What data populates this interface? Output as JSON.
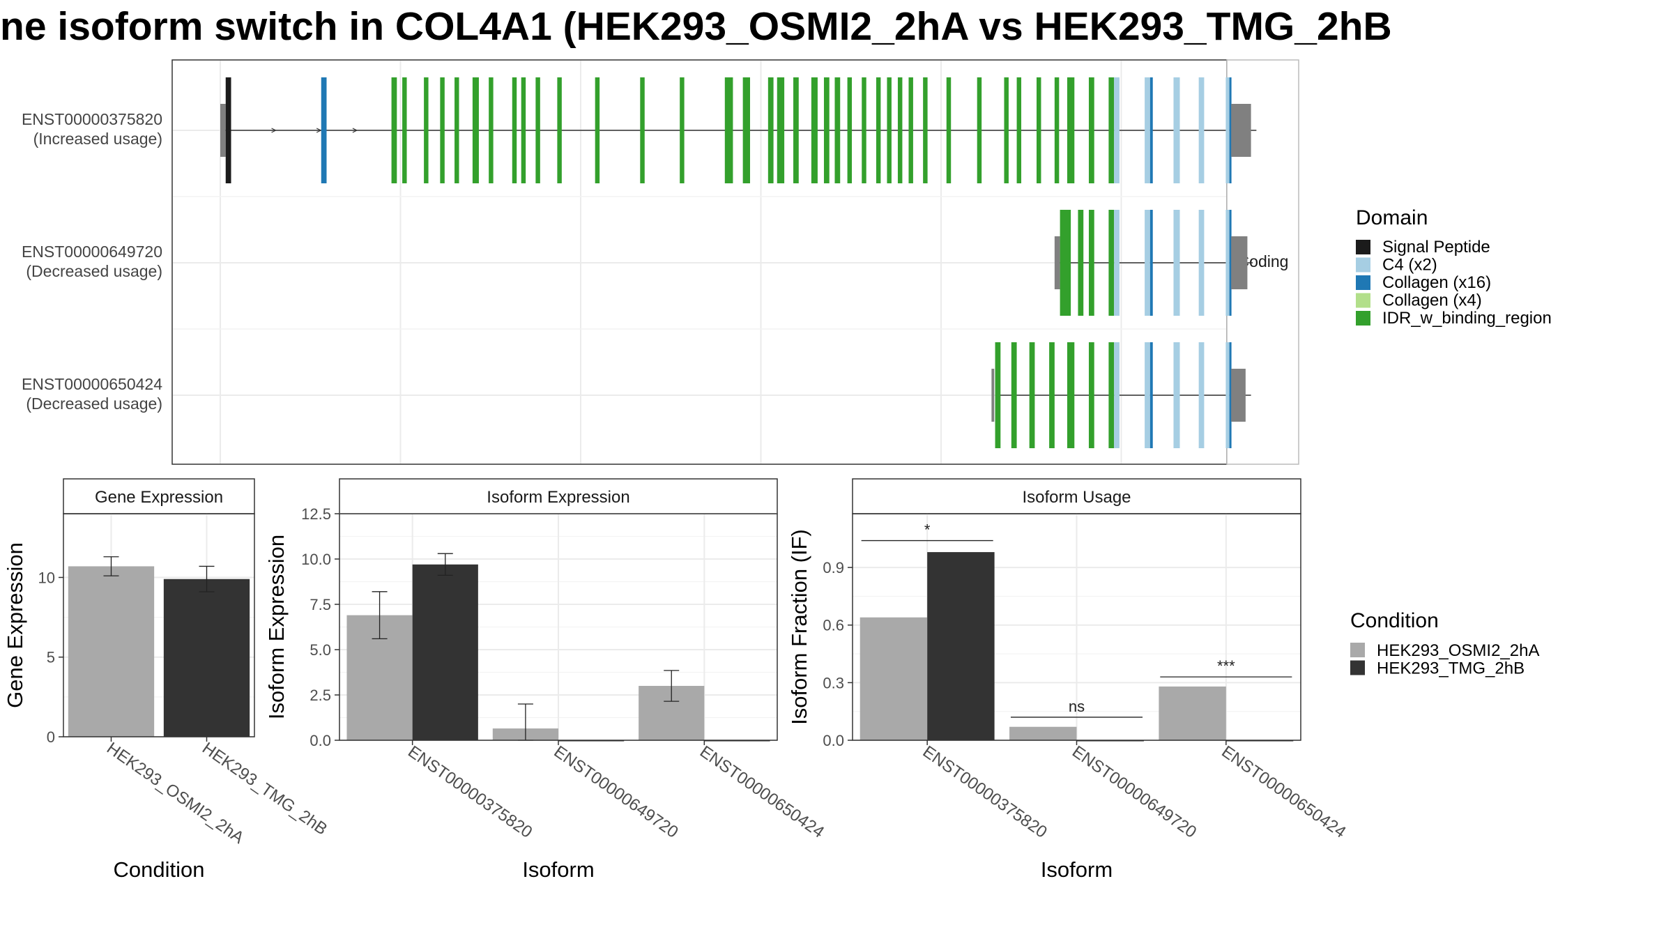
{
  "title": "ne isoform switch in COL4A1 (HEK293_OSMI2_2hA vs HEK293_TMG_2hB",
  "colors": {
    "cond_a": "#a9a9a9",
    "cond_b": "#333333",
    "utr": "#808080",
    "Signal Peptide": "#1b1b1b",
    "C4 (x2)": "#a6cee3",
    "Collagen (x16)": "#1f78b4",
    "Collagen (x4)": "#b2df8a",
    "IDR_w_binding_region": "#33a02c"
  },
  "chart_data": [
    {
      "type": "gene_structure",
      "strip_label": "Coding",
      "legend_title": "Domain",
      "legend": [
        "Signal Peptide",
        "C4 (x2)",
        "Collagen (x16)",
        "Collagen (x4)",
        "IDR_w_binding_region"
      ],
      "transcripts": [
        {
          "id": "ENST00000375820",
          "label": "(Increased usage)",
          "start": 0.2,
          "end": 57.5
        },
        {
          "id": "ENST00000649720",
          "label": "(Decreased usage)",
          "start": 46.5,
          "end": 57.3
        },
        {
          "id": "ENST00000650424",
          "label": "(Decreased usage)",
          "start": 43.0,
          "end": 57.2
        }
      ],
      "exons": [
        {
          "t": 0,
          "s": 0.0,
          "e": 0.3,
          "d": "utr"
        },
        {
          "t": 0,
          "s": 0.3,
          "e": 0.6,
          "d": "Signal Peptide"
        },
        {
          "t": 0,
          "s": 5.6,
          "e": 5.9,
          "d": "Collagen (x16)"
        },
        {
          "t": 0,
          "s": 9.5,
          "e": 9.8,
          "d": "IDR_w_binding_region"
        },
        {
          "t": 0,
          "s": 10.1,
          "e": 10.35,
          "d": "IDR_w_binding_region"
        },
        {
          "t": 0,
          "s": 11.3,
          "e": 11.55,
          "d": "IDR_w_binding_region"
        },
        {
          "t": 0,
          "s": 12.2,
          "e": 12.45,
          "d": "IDR_w_binding_region"
        },
        {
          "t": 0,
          "s": 13.0,
          "e": 13.25,
          "d": "IDR_w_binding_region"
        },
        {
          "t": 0,
          "s": 14.0,
          "e": 14.35,
          "d": "IDR_w_binding_region"
        },
        {
          "t": 0,
          "s": 14.9,
          "e": 15.15,
          "d": "IDR_w_binding_region"
        },
        {
          "t": 0,
          "s": 16.2,
          "e": 16.45,
          "d": "IDR_w_binding_region"
        },
        {
          "t": 0,
          "s": 16.7,
          "e": 16.95,
          "d": "IDR_w_binding_region"
        },
        {
          "t": 0,
          "s": 17.5,
          "e": 17.75,
          "d": "IDR_w_binding_region"
        },
        {
          "t": 0,
          "s": 18.7,
          "e": 18.95,
          "d": "IDR_w_binding_region"
        },
        {
          "t": 0,
          "s": 20.8,
          "e": 21.05,
          "d": "IDR_w_binding_region"
        },
        {
          "t": 0,
          "s": 23.3,
          "e": 23.55,
          "d": "IDR_w_binding_region"
        },
        {
          "t": 0,
          "s": 25.5,
          "e": 25.75,
          "d": "IDR_w_binding_region"
        },
        {
          "t": 0,
          "s": 28.0,
          "e": 28.45,
          "d": "IDR_w_binding_region"
        },
        {
          "t": 0,
          "s": 29.0,
          "e": 29.4,
          "d": "IDR_w_binding_region"
        },
        {
          "t": 0,
          "s": 30.4,
          "e": 30.7,
          "d": "IDR_w_binding_region"
        },
        {
          "t": 0,
          "s": 30.9,
          "e": 31.3,
          "d": "IDR_w_binding_region"
        },
        {
          "t": 0,
          "s": 31.8,
          "e": 32.1,
          "d": "IDR_w_binding_region"
        },
        {
          "t": 0,
          "s": 32.8,
          "e": 33.15,
          "d": "IDR_w_binding_region"
        },
        {
          "t": 0,
          "s": 33.5,
          "e": 33.8,
          "d": "IDR_w_binding_region"
        },
        {
          "t": 0,
          "s": 34.1,
          "e": 34.4,
          "d": "IDR_w_binding_region"
        },
        {
          "t": 0,
          "s": 34.8,
          "e": 35.05,
          "d": "IDR_w_binding_region"
        },
        {
          "t": 0,
          "s": 35.6,
          "e": 35.85,
          "d": "IDR_w_binding_region"
        },
        {
          "t": 0,
          "s": 36.4,
          "e": 36.65,
          "d": "IDR_w_binding_region"
        },
        {
          "t": 0,
          "s": 37.0,
          "e": 37.25,
          "d": "IDR_w_binding_region"
        },
        {
          "t": 0,
          "s": 37.6,
          "e": 37.85,
          "d": "IDR_w_binding_region"
        },
        {
          "t": 0,
          "s": 38.2,
          "e": 38.45,
          "d": "IDR_w_binding_region"
        },
        {
          "t": 0,
          "s": 39.0,
          "e": 39.25,
          "d": "IDR_w_binding_region"
        },
        {
          "t": 0,
          "s": 40.3,
          "e": 40.55,
          "d": "IDR_w_binding_region"
        },
        {
          "t": 0,
          "s": 42.0,
          "e": 42.25,
          "d": "IDR_w_binding_region"
        },
        {
          "t": 0,
          "s": 43.5,
          "e": 43.75,
          "d": "IDR_w_binding_region"
        },
        {
          "t": 0,
          "s": 44.2,
          "e": 44.45,
          "d": "IDR_w_binding_region"
        },
        {
          "t": 0,
          "s": 45.3,
          "e": 45.55,
          "d": "IDR_w_binding_region"
        },
        {
          "t": 0,
          "s": 46.3,
          "e": 46.55,
          "d": "IDR_w_binding_region"
        },
        {
          "t": 0,
          "s": 47.0,
          "e": 47.4,
          "d": "IDR_w_binding_region"
        },
        {
          "t": 0,
          "s": 48.2,
          "e": 48.5,
          "d": "IDR_w_binding_region"
        },
        {
          "t": 0,
          "s": 49.3,
          "e": 49.6,
          "d": "IDR_w_binding_region"
        },
        {
          "t": 0,
          "s": 49.6,
          "e": 49.9,
          "d": "C4 (x2)"
        },
        {
          "t": 0,
          "s": 51.3,
          "e": 51.6,
          "d": "C4 (x2)"
        },
        {
          "t": 0,
          "s": 51.6,
          "e": 51.75,
          "d": "Collagen (x16)"
        },
        {
          "t": 0,
          "s": 52.9,
          "e": 53.25,
          "d": "C4 (x2)"
        },
        {
          "t": 0,
          "s": 54.3,
          "e": 54.6,
          "d": "C4 (x2)"
        },
        {
          "t": 0,
          "s": 55.8,
          "e": 56.0,
          "d": "C4 (x2)"
        },
        {
          "t": 0,
          "s": 56.0,
          "e": 56.1,
          "d": "Collagen (x16)"
        },
        {
          "t": 0,
          "s": 56.1,
          "e": 57.2,
          "d": "utr"
        },
        {
          "t": 1,
          "s": 46.3,
          "e": 46.6,
          "d": "utr"
        },
        {
          "t": 1,
          "s": 46.6,
          "e": 47.2,
          "d": "IDR_w_binding_region"
        },
        {
          "t": 1,
          "s": 47.6,
          "e": 47.9,
          "d": "IDR_w_binding_region"
        },
        {
          "t": 1,
          "s": 48.2,
          "e": 48.5,
          "d": "IDR_w_binding_region"
        },
        {
          "t": 1,
          "s": 49.3,
          "e": 49.6,
          "d": "IDR_w_binding_region"
        },
        {
          "t": 1,
          "s": 49.6,
          "e": 49.9,
          "d": "C4 (x2)"
        },
        {
          "t": 1,
          "s": 51.3,
          "e": 51.6,
          "d": "C4 (x2)"
        },
        {
          "t": 1,
          "s": 51.6,
          "e": 51.75,
          "d": "Collagen (x16)"
        },
        {
          "t": 1,
          "s": 52.9,
          "e": 53.25,
          "d": "C4 (x2)"
        },
        {
          "t": 1,
          "s": 54.3,
          "e": 54.6,
          "d": "C4 (x2)"
        },
        {
          "t": 1,
          "s": 55.8,
          "e": 56.0,
          "d": "C4 (x2)"
        },
        {
          "t": 1,
          "s": 56.0,
          "e": 56.1,
          "d": "Collagen (x16)"
        },
        {
          "t": 1,
          "s": 56.1,
          "e": 57.0,
          "d": "utr"
        },
        {
          "t": 2,
          "s": 42.8,
          "e": 42.95,
          "d": "utr"
        },
        {
          "t": 2,
          "s": 43.0,
          "e": 43.3,
          "d": "IDR_w_binding_region"
        },
        {
          "t": 2,
          "s": 43.9,
          "e": 44.2,
          "d": "IDR_w_binding_region"
        },
        {
          "t": 2,
          "s": 44.9,
          "e": 45.2,
          "d": "IDR_w_binding_region"
        },
        {
          "t": 2,
          "s": 46.0,
          "e": 46.3,
          "d": "IDR_w_binding_region"
        },
        {
          "t": 2,
          "s": 47.0,
          "e": 47.4,
          "d": "IDR_w_binding_region"
        },
        {
          "t": 2,
          "s": 48.2,
          "e": 48.5,
          "d": "IDR_w_binding_region"
        },
        {
          "t": 2,
          "s": 49.3,
          "e": 49.6,
          "d": "IDR_w_binding_region"
        },
        {
          "t": 2,
          "s": 49.6,
          "e": 49.9,
          "d": "C4 (x2)"
        },
        {
          "t": 2,
          "s": 51.3,
          "e": 51.6,
          "d": "C4 (x2)"
        },
        {
          "t": 2,
          "s": 51.6,
          "e": 51.75,
          "d": "Collagen (x16)"
        },
        {
          "t": 2,
          "s": 52.9,
          "e": 53.25,
          "d": "C4 (x2)"
        },
        {
          "t": 2,
          "s": 54.3,
          "e": 54.6,
          "d": "C4 (x2)"
        },
        {
          "t": 2,
          "s": 55.8,
          "e": 56.0,
          "d": "C4 (x2)"
        },
        {
          "t": 2,
          "s": 56.0,
          "e": 56.1,
          "d": "Collagen (x16)"
        },
        {
          "t": 2,
          "s": 56.1,
          "e": 56.9,
          "d": "utr"
        }
      ],
      "arrows": [
        3.0,
        5.5,
        7.5,
        9.7
      ]
    },
    {
      "type": "bar",
      "title": "Gene Expression",
      "xlabel": "Condition",
      "ylabel": "Gene Expression",
      "ylim": [
        0,
        14
      ],
      "yticks": [
        "0",
        "5",
        "10"
      ],
      "categories": [
        "HEK293_OSMI2_2hA",
        "HEK293_TMG_2hB"
      ],
      "values": [
        10.7,
        9.9
      ],
      "errors": [
        0.6,
        0.8
      ]
    },
    {
      "type": "bar",
      "title": "Isoform Expression",
      "xlabel": "Isoform",
      "ylabel": "Isoform Expression",
      "ylim": [
        0,
        12.5
      ],
      "yticks": [
        "0.0",
        "2.5",
        "5.0",
        "7.5",
        "10.0",
        "12.5"
      ],
      "categories": [
        "ENST00000375820",
        "ENST00000649720",
        "ENST00000650424"
      ],
      "series": [
        {
          "name": "HEK293_OSMI2_2hA",
          "values": [
            6.9,
            0.65,
            3.0
          ],
          "errors": [
            1.3,
            1.35,
            0.85
          ]
        },
        {
          "name": "HEK293_TMG_2hB",
          "values": [
            9.7,
            0.0,
            0.0
          ],
          "errors": [
            0.6,
            0.0,
            0.0
          ]
        }
      ]
    },
    {
      "type": "bar",
      "title": "Isoform Usage",
      "xlabel": "Isoform",
      "ylabel": "Isoform Fraction (IF)",
      "ylim": [
        0,
        1.18
      ],
      "yticks": [
        "0.0",
        "0.3",
        "0.6",
        "0.9"
      ],
      "categories": [
        "ENST00000375820",
        "ENST00000649720",
        "ENST00000650424"
      ],
      "series": [
        {
          "name": "HEK293_OSMI2_2hA",
          "values": [
            0.64,
            0.07,
            0.28
          ]
        },
        {
          "name": "HEK293_TMG_2hB",
          "values": [
            0.98,
            0.0,
            0.0
          ]
        }
      ],
      "significance": [
        {
          "label": "*",
          "y": 1.04
        },
        {
          "label": "ns",
          "y": 0.12
        },
        {
          "label": "***",
          "y": 0.33
        }
      ]
    }
  ],
  "condition_legend": {
    "title": "Condition",
    "items": [
      "HEK293_OSMI2_2hA",
      "HEK293_TMG_2hB"
    ]
  }
}
